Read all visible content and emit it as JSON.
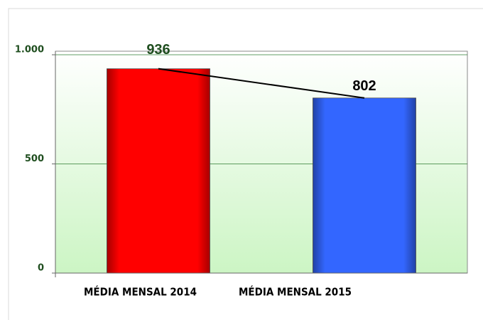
{
  "chart_data": {
    "type": "bar",
    "categories": [
      "MÉDIA MENSAL 2014",
      "MÉDIA MENSAL 2015"
    ],
    "values": [
      936,
      802
    ],
    "colors": [
      "#ff0000",
      "#3366ff"
    ],
    "label_colors": [
      "#1f4e1f",
      "#000000"
    ],
    "ylim": [
      0,
      1000
    ],
    "yticks": [
      0,
      500,
      {
        "value": 1000,
        "label": "1.000"
      }
    ],
    "grid": true,
    "trendline": true
  }
}
